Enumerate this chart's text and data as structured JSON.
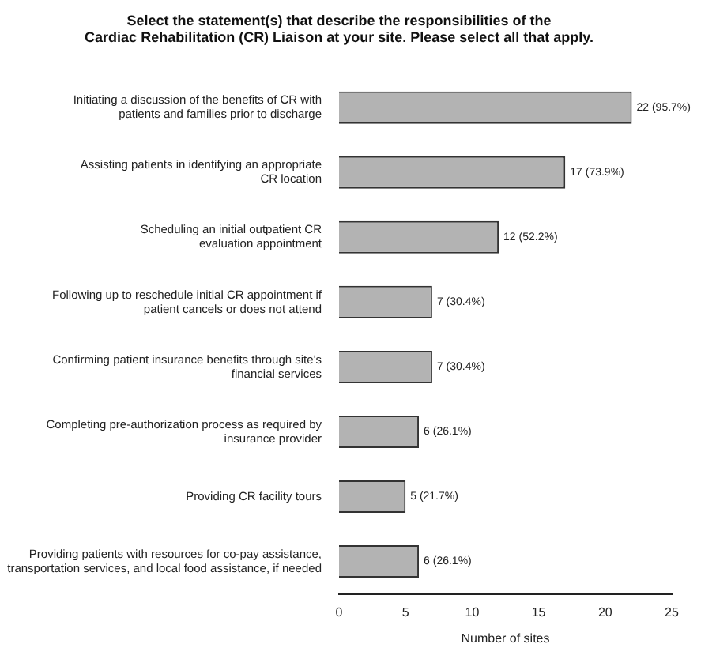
{
  "chart_data": {
    "type": "bar",
    "orientation": "horizontal",
    "title": "Select the statement(s) that describe the responsibilities of the\nCardiac Rehabilitation (CR) Liaison at your site. Please select all that apply.",
    "xlabel": "Number of sites",
    "categories": [
      "Initiating a discussion of the benefits of CR with\npatients and families prior to discharge",
      "Assisting patients in identifying an appropriate\nCR location",
      "Scheduling an initial outpatient CR\nevaluation appointment",
      "Following up to reschedule initial CR appointment if\npatient cancels or does not attend",
      "Confirming patient insurance benefits through site's\nfinancial services",
      "Completing pre-authorization process as required by\ninsurance provider",
      "Providing CR facility tours",
      "Providing patients with resources for co-pay assistance,\ntransportation services, and local food assistance, if needed"
    ],
    "values": [
      22,
      17,
      12,
      7,
      7,
      6,
      5,
      6
    ],
    "value_labels": [
      "22 (95.7%)",
      "17 (73.9%)",
      "12 (52.2%)",
      "7 (30.4%)",
      "7 (30.4%)",
      "6 (26.1%)",
      "5 (21.7%)",
      "6 (26.1%)"
    ],
    "color": "#b3b3b3",
    "xlim": [
      0,
      25
    ],
    "xticks": [
      0,
      5,
      10,
      15,
      20,
      25
    ],
    "grid": false,
    "legend": false
  }
}
